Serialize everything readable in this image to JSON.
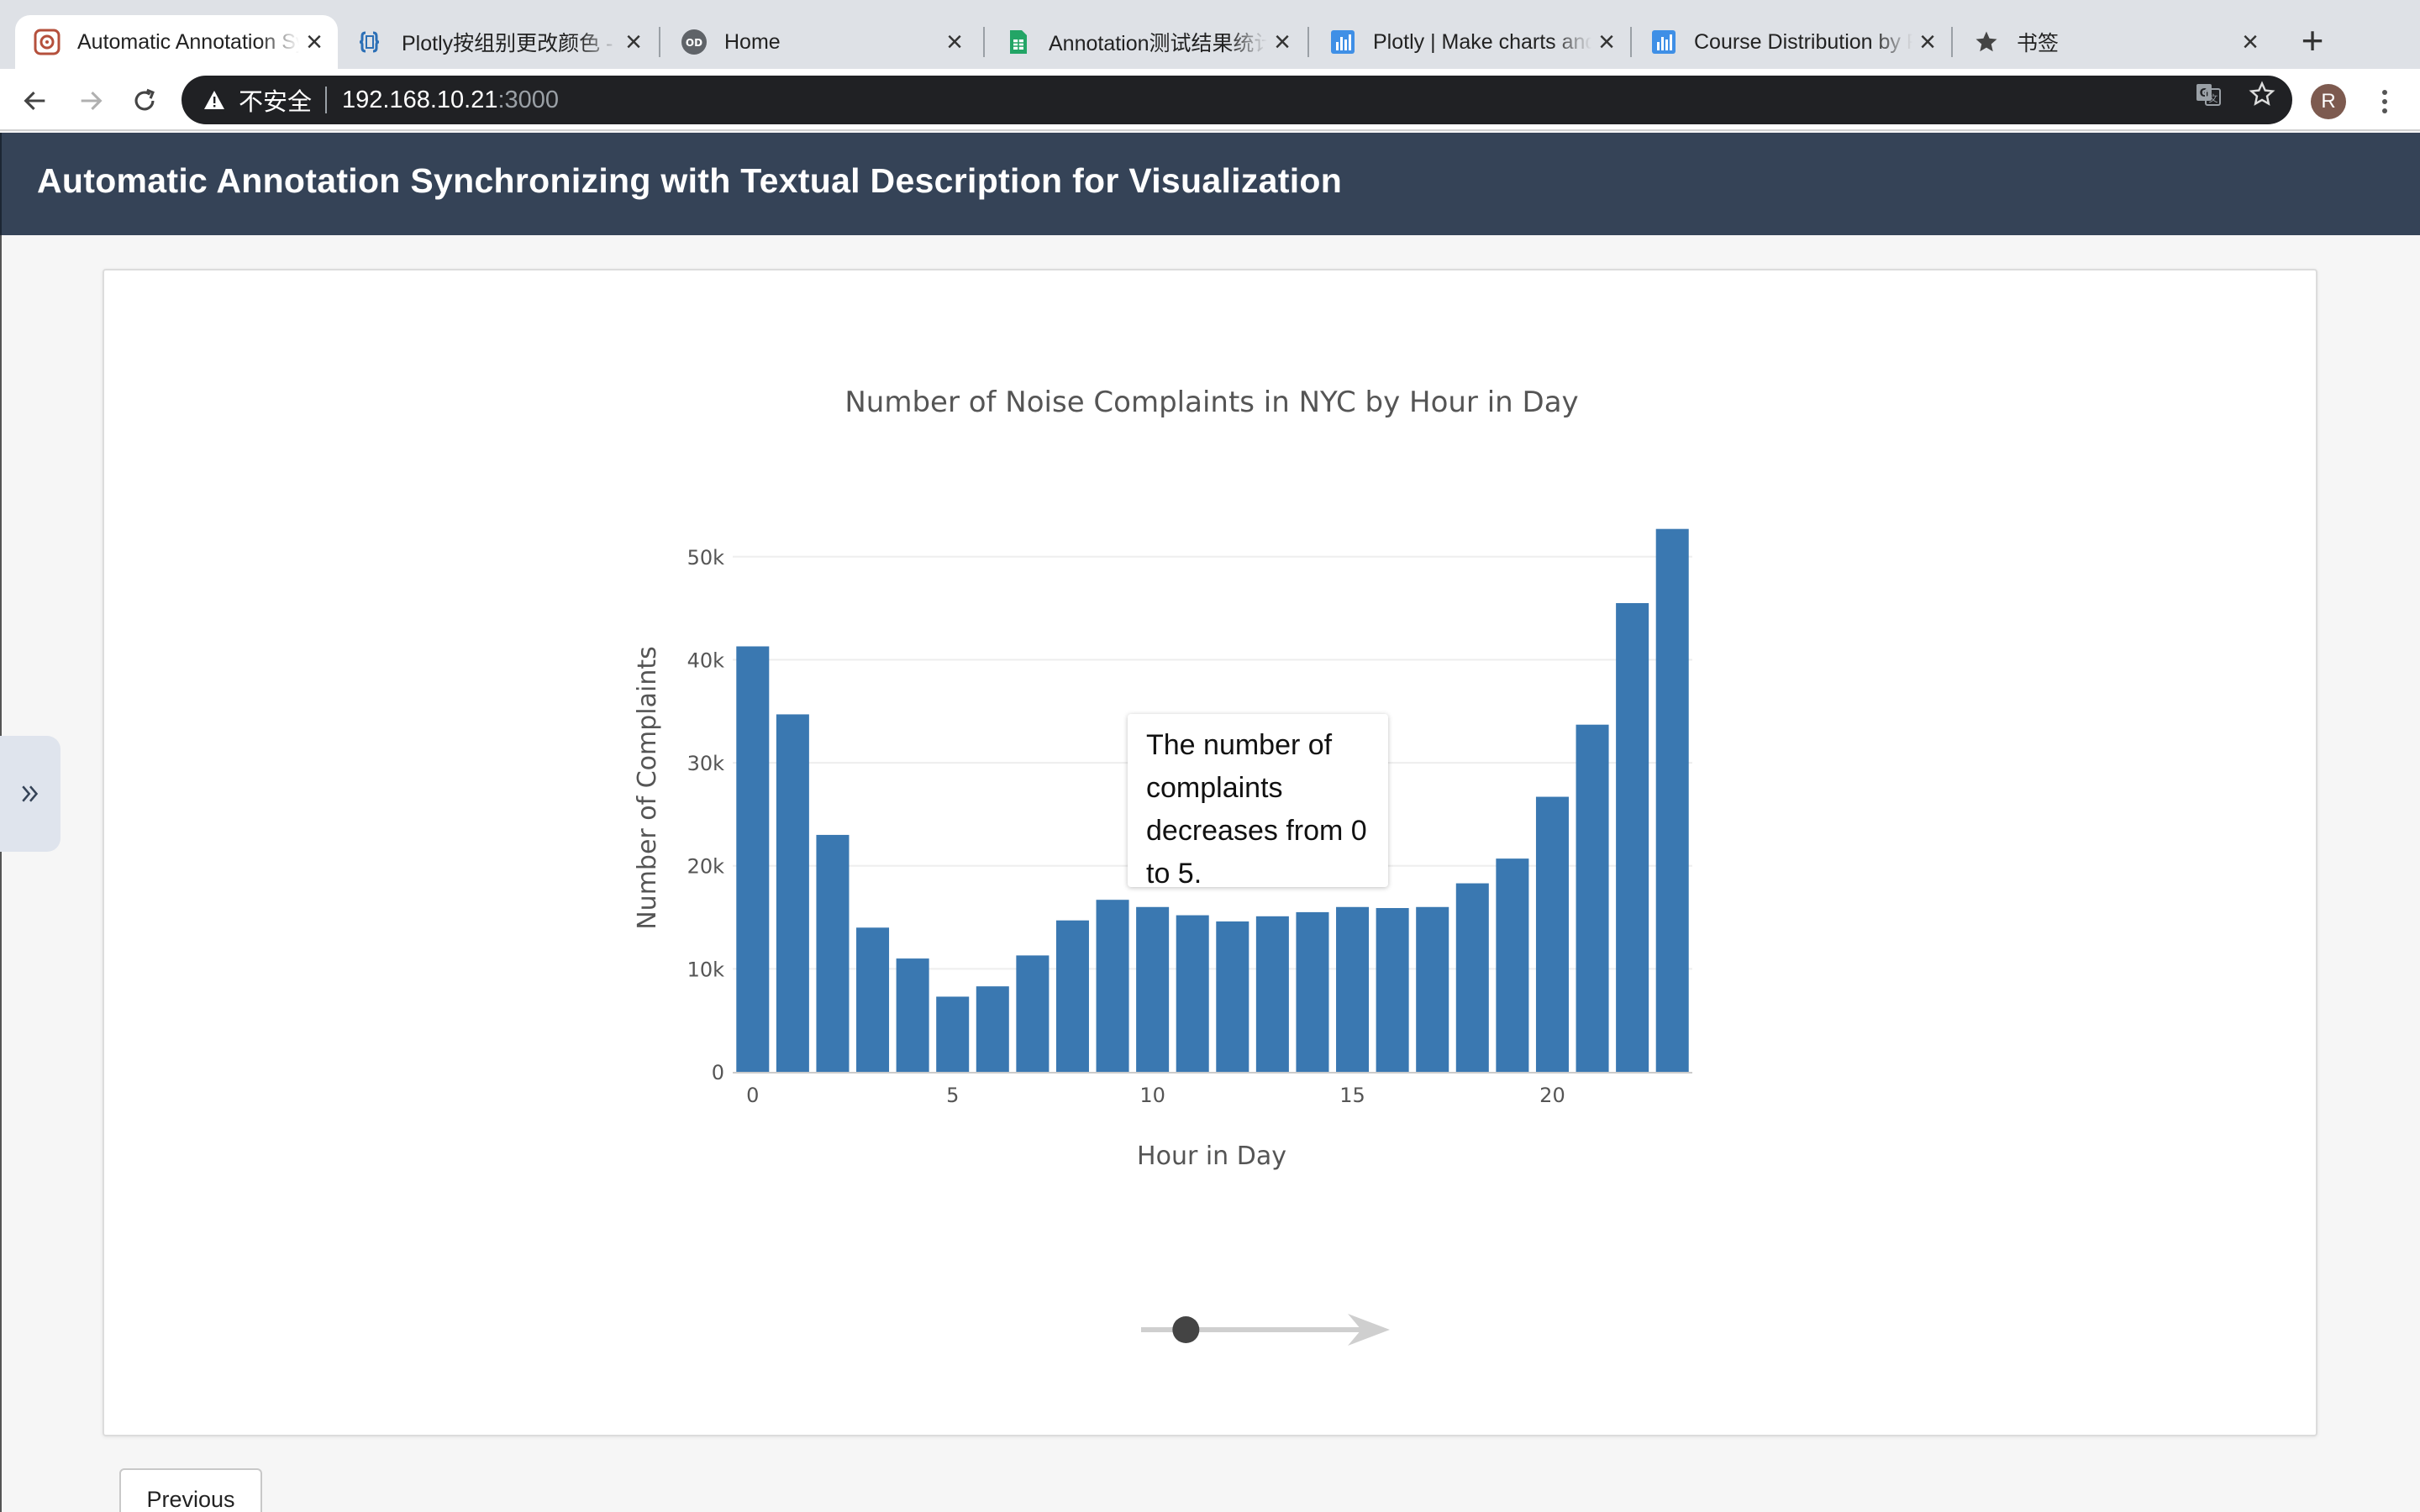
{
  "browser": {
    "tabs": [
      {
        "title": "Automatic Annotation Synchronizing",
        "icon": "app-logo-icon",
        "active": true
      },
      {
        "title": "Plotly按组别更改颜色 - ",
        "icon": "code-file-icon",
        "active": false
      },
      {
        "title": "Home",
        "icon": "od-logo-icon",
        "active": false
      },
      {
        "title": "Annotation测试结果统计",
        "icon": "sheets-icon",
        "active": false
      },
      {
        "title": "Plotly | Make charts and",
        "icon": "chart-icon",
        "active": false
      },
      {
        "title": "Course Distribution by F",
        "icon": "chart-icon",
        "active": false
      },
      {
        "title": "书签",
        "icon": "star-icon",
        "active": false
      }
    ],
    "address": {
      "security_label": "不安全",
      "host": "192.168.10.21",
      "port": ":3000"
    },
    "profile_initial": "R"
  },
  "app": {
    "title": "Automatic Annotation Synchronizing with Textual Description for Visualization",
    "previous_label": "Previous"
  },
  "annotation": {
    "text": "The number of complaints decreases from 0 to 5."
  },
  "chart_data": {
    "type": "bar",
    "title": "Number of Noise Complaints in NYC by Hour in Day",
    "xlabel": "Hour in Day",
    "ylabel": "Number of Complaints",
    "x": [
      0,
      1,
      2,
      3,
      4,
      5,
      6,
      7,
      8,
      9,
      10,
      11,
      12,
      13,
      14,
      15,
      16,
      17,
      18,
      19,
      20,
      21,
      22,
      23
    ],
    "values": [
      41300,
      34700,
      23000,
      14000,
      11000,
      7300,
      8300,
      11300,
      14700,
      16700,
      16000,
      15200,
      14600,
      15100,
      15500,
      16000,
      15900,
      16000,
      18300,
      20700,
      26700,
      33700,
      45500,
      52700
    ],
    "ylim": [
      0,
      53000
    ],
    "yticks": [
      0,
      10000,
      20000,
      30000,
      40000,
      50000
    ],
    "ytick_labels": [
      "0",
      "10k",
      "20k",
      "30k",
      "40k",
      "50k"
    ],
    "xticks": [
      0,
      5,
      10,
      15,
      20
    ],
    "xtick_labels": [
      "0",
      "5",
      "10",
      "15",
      "20"
    ],
    "bar_color": "#3a78b1",
    "grid": true
  },
  "progress": {
    "current_step": 1,
    "total_steps": 3
  }
}
